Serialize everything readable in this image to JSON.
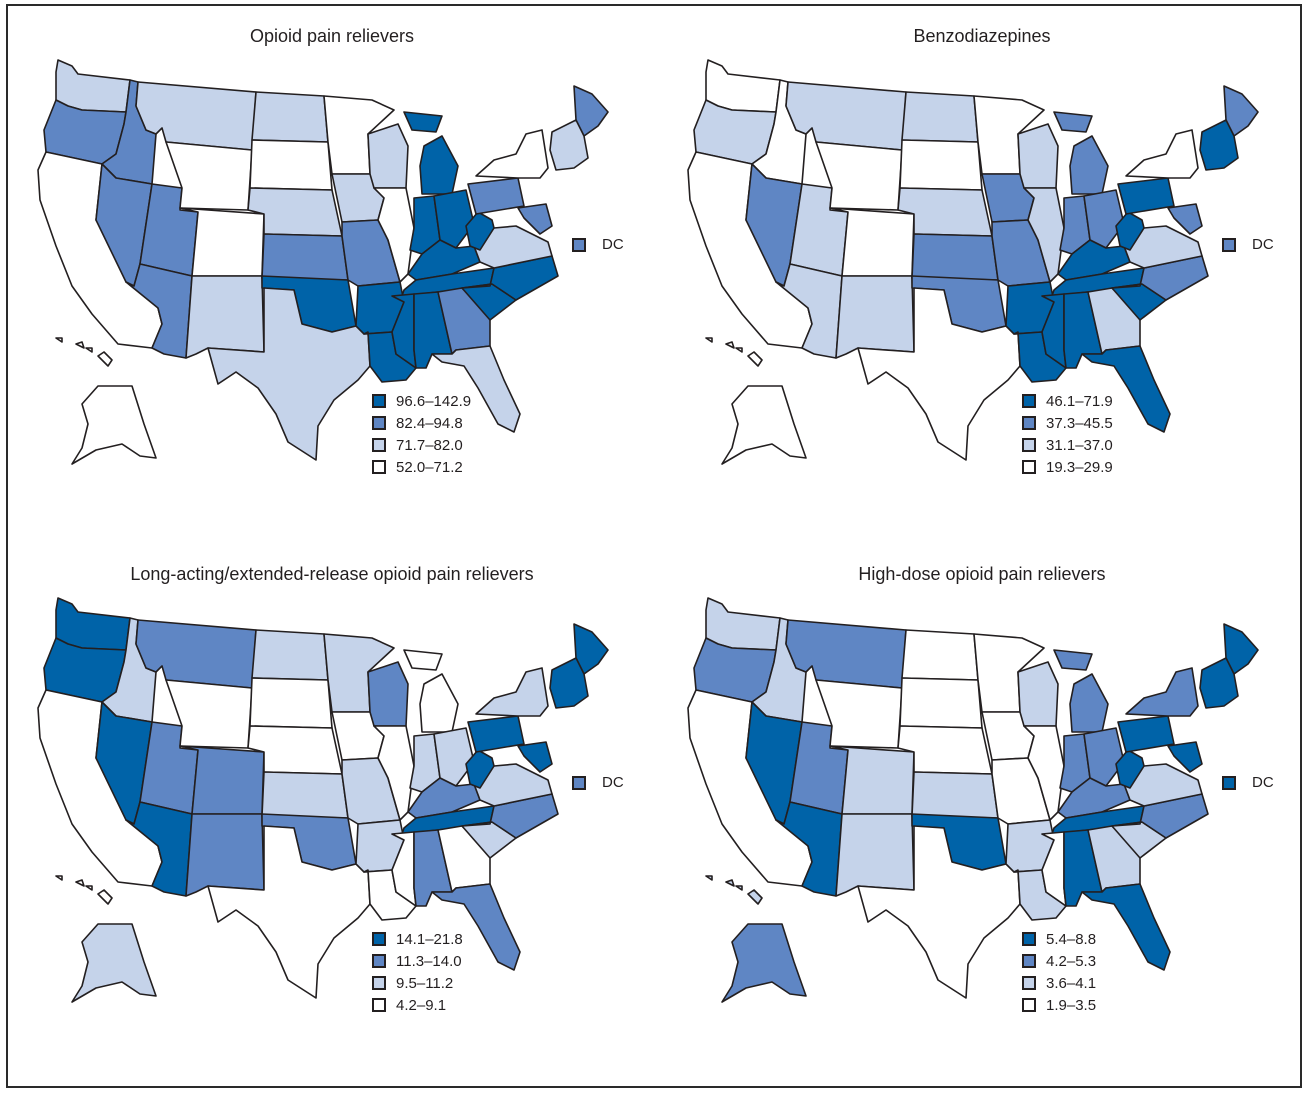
{
  "colors": {
    "c4": "#0063a8",
    "c3": "#5f86c4",
    "c2": "#c5d3ea",
    "c1": "#ffffff",
    "stroke": "#231f20"
  },
  "panels": [
    {
      "title": "Opioid pain relievers",
      "legend": [
        "96.6–142.9",
        "82.4–94.8",
        "71.7–82.0",
        "52.0–71.2"
      ],
      "dc_label": "DC",
      "dc_class": 3,
      "states": {
        "WA": 2,
        "OR": 3,
        "CA": 1,
        "ID": 3,
        "NV": 3,
        "UT": 3,
        "AZ": 3,
        "MT": 2,
        "WY": 1,
        "CO": 1,
        "NM": 2,
        "ND": 2,
        "SD": 1,
        "NE": 2,
        "KS": 3,
        "OK": 4,
        "TX": 2,
        "MN": 1,
        "IA": 2,
        "MO": 3,
        "AR": 4,
        "LA": 4,
        "WI": 2,
        "IL": 1,
        "MI": 4,
        "IN": 4,
        "OH": 4,
        "KY": 4,
        "TN": 4,
        "MS": 4,
        "AL": 4,
        "GA": 3,
        "FL": 2,
        "SC": 4,
        "NC": 4,
        "VA": 2,
        "WV": 4,
        "PA": 3,
        "NY": 1,
        "ME": 3,
        "NE6": 2,
        "MD": 3,
        "AK": 1,
        "HI": 1
      }
    },
    {
      "title": "Benzodiazepines",
      "legend": [
        "46.1–71.9",
        "37.3–45.5",
        "31.1–37.0",
        "19.3–29.9"
      ],
      "dc_label": "DC",
      "dc_class": 3,
      "states": {
        "WA": 1,
        "OR": 2,
        "CA": 1,
        "ID": 1,
        "NV": 3,
        "UT": 2,
        "AZ": 2,
        "MT": 2,
        "WY": 1,
        "CO": 1,
        "NM": 2,
        "ND": 2,
        "SD": 1,
        "NE": 2,
        "KS": 3,
        "OK": 3,
        "TX": 1,
        "MN": 1,
        "IA": 3,
        "MO": 3,
        "AR": 4,
        "LA": 4,
        "WI": 2,
        "IL": 2,
        "MI": 3,
        "IN": 3,
        "OH": 3,
        "KY": 4,
        "TN": 4,
        "MS": 4,
        "AL": 4,
        "GA": 2,
        "FL": 4,
        "SC": 4,
        "NC": 3,
        "VA": 2,
        "WV": 4,
        "PA": 4,
        "NY": 1,
        "ME": 3,
        "NE6": 4,
        "MD": 3,
        "AK": 1,
        "HI": 1
      }
    },
    {
      "title": "Long-acting/extended-release opioid pain relievers",
      "legend": [
        "14.1–21.8",
        "11.3–14.0",
        "9.5–11.2",
        "4.2–9.1"
      ],
      "dc_label": "DC",
      "dc_class": 3,
      "states": {
        "WA": 4,
        "OR": 4,
        "CA": 1,
        "ID": 2,
        "NV": 4,
        "UT": 3,
        "AZ": 4,
        "MT": 3,
        "WY": 1,
        "CO": 3,
        "NM": 3,
        "ND": 2,
        "SD": 1,
        "NE": 1,
        "KS": 2,
        "OK": 3,
        "TX": 1,
        "MN": 2,
        "IA": 1,
        "MO": 2,
        "AR": 2,
        "LA": 1,
        "WI": 3,
        "IL": 1,
        "MI": 1,
        "IN": 2,
        "OH": 2,
        "KY": 3,
        "TN": 4,
        "MS": 1,
        "AL": 3,
        "GA": 1,
        "FL": 3,
        "SC": 2,
        "NC": 3,
        "VA": 2,
        "WV": 4,
        "PA": 4,
        "NY": 2,
        "ME": 4,
        "NE6": 4,
        "MD": 4,
        "AK": 2,
        "HI": 1
      }
    },
    {
      "title": "High-dose opioid pain relievers",
      "legend": [
        "5.4–8.8",
        "4.2–5.3",
        "3.6–4.1",
        "1.9–3.5"
      ],
      "dc_label": "DC",
      "dc_class": 4,
      "states": {
        "WA": 2,
        "OR": 3,
        "CA": 1,
        "ID": 2,
        "NV": 4,
        "UT": 3,
        "AZ": 4,
        "MT": 3,
        "WY": 1,
        "CO": 2,
        "NM": 2,
        "ND": 1,
        "SD": 1,
        "NE": 1,
        "KS": 2,
        "OK": 4,
        "TX": 1,
        "MN": 1,
        "IA": 1,
        "MO": 1,
        "AR": 2,
        "LA": 2,
        "WI": 2,
        "IL": 1,
        "MI": 3,
        "IN": 3,
        "OH": 3,
        "KY": 3,
        "TN": 4,
        "MS": 1,
        "AL": 4,
        "GA": 2,
        "FL": 4,
        "SC": 2,
        "NC": 3,
        "VA": 2,
        "WV": 4,
        "PA": 4,
        "NY": 3,
        "ME": 4,
        "NE6": 4,
        "MD": 4,
        "AK": 3,
        "HI": 2
      }
    }
  ]
}
